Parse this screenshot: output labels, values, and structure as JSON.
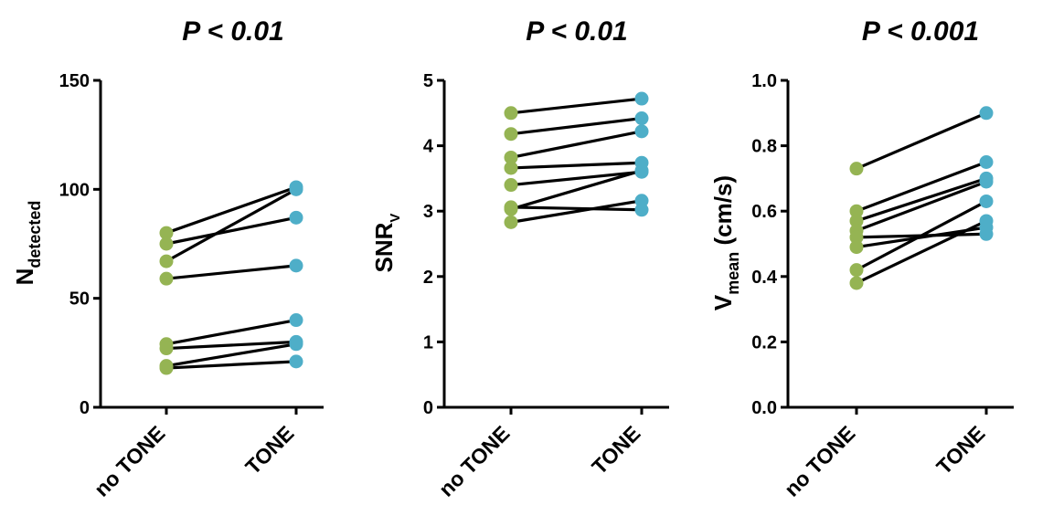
{
  "chart_data": [
    {
      "type": "paired-dot",
      "title": "P < 0.01",
      "ylabel": {
        "main": "N",
        "sub": "detected",
        "rest": ""
      },
      "categories": [
        "no TONE",
        "TONE"
      ],
      "ylim": [
        0,
        150
      ],
      "yticks": [
        0,
        50,
        100,
        150
      ],
      "tick_labels": [
        "0",
        "50",
        "100",
        "150"
      ],
      "colors": {
        "noTone": "#95b453",
        "tone": "#4eaec8"
      },
      "pairs": [
        [
          80,
          101
        ],
        [
          75,
          87
        ],
        [
          67,
          100
        ],
        [
          59,
          65
        ],
        [
          29,
          40
        ],
        [
          27,
          30
        ],
        [
          19,
          29
        ],
        [
          18,
          21
        ]
      ]
    },
    {
      "type": "paired-dot",
      "title": "P < 0.01",
      "ylabel": {
        "main": "SNR",
        "sub": "V",
        "rest": ""
      },
      "categories": [
        "no TONE",
        "TONE"
      ],
      "ylim": [
        0,
        5
      ],
      "yticks": [
        0,
        1,
        2,
        3,
        4,
        5
      ],
      "tick_labels": [
        "0",
        "1",
        "2",
        "3",
        "4",
        "5"
      ],
      "colors": {
        "noTone": "#95b453",
        "tone": "#4eaec8"
      },
      "pairs": [
        [
          4.5,
          4.72
        ],
        [
          4.18,
          4.42
        ],
        [
          3.82,
          4.22
        ],
        [
          3.66,
          3.74
        ],
        [
          3.4,
          3.6
        ],
        [
          3.06,
          3.02
        ],
        [
          3.03,
          3.62
        ],
        [
          2.83,
          3.16
        ]
      ]
    },
    {
      "type": "paired-dot",
      "title": "P < 0.001",
      "ylabel": {
        "main": "V",
        "sub": "mean",
        "rest": " (cm/s)"
      },
      "categories": [
        "no TONE",
        "TONE"
      ],
      "ylim": [
        0,
        1.0
      ],
      "yticks": [
        0,
        0.2,
        0.4,
        0.6,
        0.8,
        1.0
      ],
      "tick_labels": [
        "0.0",
        "0.2",
        "0.4",
        "0.6",
        "0.8",
        "1.0"
      ],
      "colors": {
        "noTone": "#95b453",
        "tone": "#4eaec8"
      },
      "pairs": [
        [
          0.73,
          0.9
        ],
        [
          0.6,
          0.75
        ],
        [
          0.57,
          0.7
        ],
        [
          0.54,
          0.69
        ],
        [
          0.52,
          0.53
        ],
        [
          0.49,
          0.55
        ],
        [
          0.42,
          0.63
        ],
        [
          0.38,
          0.57
        ]
      ]
    }
  ]
}
